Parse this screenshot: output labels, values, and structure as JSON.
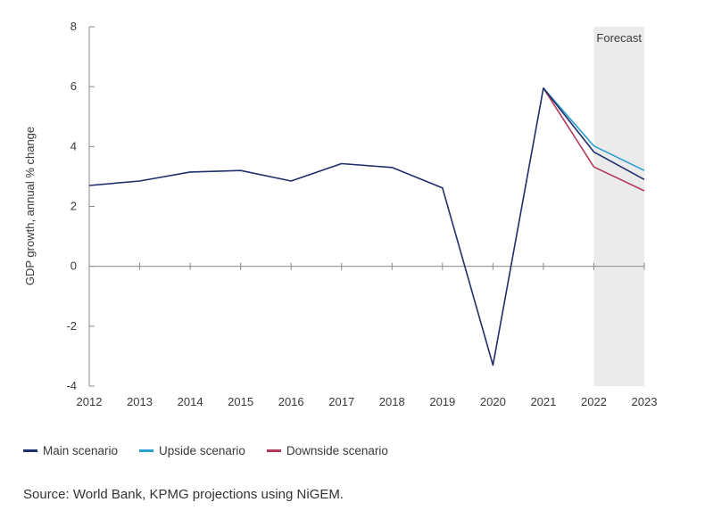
{
  "chart_data": {
    "type": "line",
    "x": [
      2012,
      2013,
      2014,
      2015,
      2016,
      2017,
      2018,
      2019,
      2020,
      2021,
      2022,
      2023
    ],
    "series": [
      {
        "name": "Main scenario",
        "color": "#1f2f6b",
        "values": [
          2.7,
          2.85,
          3.15,
          3.2,
          2.85,
          3.43,
          3.3,
          2.62,
          -3.3,
          5.95,
          3.82,
          2.9
        ]
      },
      {
        "name": "Upside scenario",
        "color": "#2a9fd0",
        "values": [
          null,
          null,
          null,
          null,
          null,
          null,
          null,
          null,
          null,
          5.95,
          4.02,
          3.2
        ]
      },
      {
        "name": "Downside scenario",
        "color": "#b23a5a",
        "values": [
          null,
          null,
          null,
          null,
          null,
          null,
          null,
          null,
          null,
          5.95,
          3.32,
          2.52
        ]
      }
    ],
    "ylabel": "GDP growth, annual % change",
    "xlabel": "",
    "ylim": [
      -4,
      8
    ],
    "yticks": [
      -4,
      -2,
      0,
      2,
      4,
      6,
      8
    ],
    "xtick_labels": [
      "2012",
      "2013",
      "2014",
      "2015",
      "2016",
      "2017",
      "2018",
      "2019",
      "2020",
      "2021",
      "2022",
      "2023"
    ],
    "shaded_region": {
      "label": "Forecast",
      "x_start": 2022,
      "x_end": 2023,
      "color": "#ebebeb"
    },
    "grid": false,
    "legend_position": "bottom-left"
  },
  "source_text": "Source: World Bank, KPMG projections using NiGEM."
}
